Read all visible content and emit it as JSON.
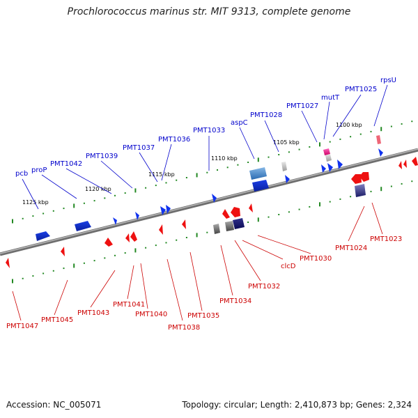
{
  "title": "Prochlorococcus marinus str. MIT 9313, complete genome",
  "footer": {
    "accession": "Accession: NC_005071",
    "summary": "Topology: circular; Length: 2,410,873 bp; Genes: 2,324"
  },
  "colors": {
    "forward_label": "#0000cc",
    "reverse_label": "#cc0000",
    "forward_gene": "#1f3fe0",
    "reverse_gene": "#ee1111",
    "backbone": "#888888",
    "tick": "#228822"
  },
  "kbp_markers": [
    "1100 kbp",
    "1105 kbp",
    "1110 kbp",
    "1115 kbp",
    "1120 kbp",
    "1125 kbp"
  ],
  "forward_labels": [
    "pcb",
    "proP",
    "PMT1042",
    "PMT1039",
    "PMT1037",
    "PMT1036",
    "PMT1033",
    "aspC",
    "PMT1028",
    "PMT1027",
    "mutT",
    "PMT1025",
    "rpsU"
  ],
  "reverse_labels": [
    "PMT1047",
    "PMT1045",
    "PMT1043",
    "PMT1041",
    "PMT1040",
    "PMT1038",
    "PMT1035",
    "PMT1034",
    "PMT1032",
    "clcD",
    "PMT1030",
    "PMT1024",
    "PMT1023"
  ]
}
